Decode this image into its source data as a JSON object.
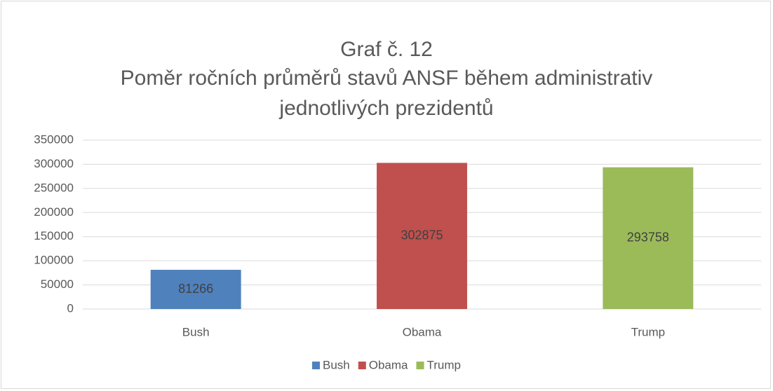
{
  "chart_data": {
    "type": "bar",
    "title": "Graf č. 12",
    "subtitle": "Poměr ročních průměrů stavů ANSF během administrativ jednotlivých prezidentů",
    "categories": [
      "Bush",
      "Obama",
      "Trump"
    ],
    "series": [
      {
        "name": "Bush",
        "color": "#4f81bd",
        "values": [
          81266,
          null,
          null
        ]
      },
      {
        "name": "Obama",
        "color": "#c0504d",
        "values": [
          null,
          302875,
          null
        ]
      },
      {
        "name": "Trump",
        "color": "#9bbb59",
        "values": [
          null,
          null,
          293758
        ]
      }
    ],
    "ylim": [
      0,
      350000
    ],
    "yticks": [
      0,
      50000,
      100000,
      150000,
      200000,
      250000,
      300000,
      350000
    ],
    "grid": true,
    "legend": "bottom",
    "data_labels": true
  }
}
